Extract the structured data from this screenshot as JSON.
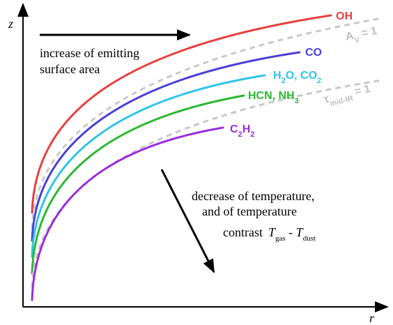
{
  "axes": {
    "y_label": "z",
    "x_label": "r"
  },
  "annotations": {
    "increase": [
      "increase of emitting",
      "surface area"
    ],
    "decrease": [
      "decrease of temperature,",
      "and of temperature",
      "contrast",
      "T",
      "gas",
      " - ",
      "T",
      "dust"
    ]
  },
  "curve_labels": {
    "oh": [
      "OH"
    ],
    "co": [
      "CO"
    ],
    "h2o_co2": [
      "H",
      "2",
      "O, CO",
      "2"
    ],
    "hcn_nh3": [
      "HCN, NH",
      "3"
    ],
    "c2h2": [
      "C",
      "2",
      "H",
      "2"
    ]
  },
  "boundaries": {
    "av": [
      "A",
      "V",
      " = 1"
    ],
    "tau": [
      "τ",
      "mid-IR",
      " = 1"
    ]
  }
}
